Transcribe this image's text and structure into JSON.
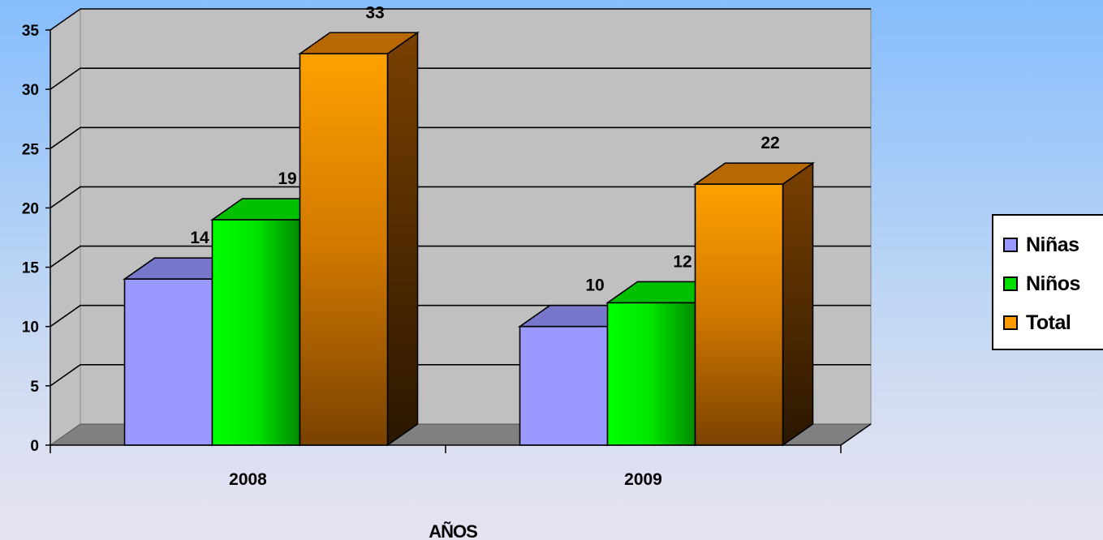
{
  "chart_data": {
    "type": "bar",
    "categories": [
      "2008",
      "2009"
    ],
    "series": [
      {
        "name": "Niñas",
        "values": [
          14,
          10
        ],
        "color": "#9999ff"
      },
      {
        "name": "Niños",
        "values": [
          19,
          12
        ],
        "color": "#00e000"
      },
      {
        "name": "Total",
        "values": [
          33,
          22
        ],
        "color": "#ff9900"
      }
    ],
    "title": "",
    "xlabel": "AÑOS",
    "ylabel": "",
    "ylim": [
      0,
      35
    ],
    "yticks": [
      "0",
      "5",
      "10",
      "15",
      "20",
      "25",
      "30",
      "35"
    ],
    "grid": true,
    "legend": "right",
    "three_d": true
  },
  "colors": {
    "wall": "#c0c0c0",
    "floor": "#808080"
  }
}
